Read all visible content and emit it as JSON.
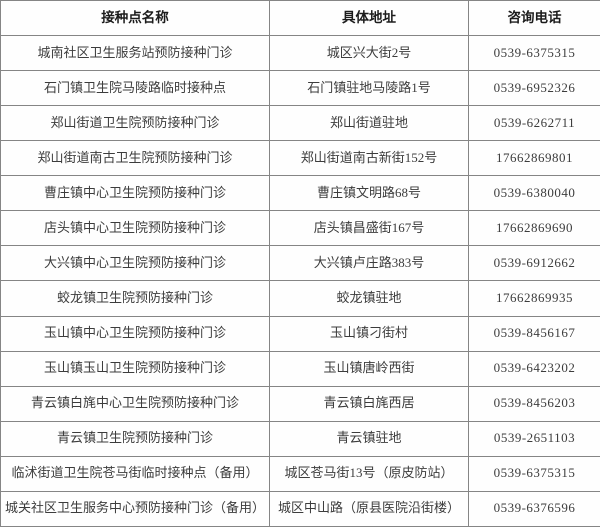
{
  "table": {
    "headers": [
      "接种点名称",
      "具体地址",
      "咨询电话"
    ],
    "rows": [
      {
        "name": "城南社区卫生服务站预防接种门诊",
        "address": "城区兴大街2号",
        "phone": "0539-6375315"
      },
      {
        "name": "石门镇卫生院马陵路临时接种点",
        "address": "石门镇驻地马陵路1号",
        "phone": "0539-6952326"
      },
      {
        "name": "郑山街道卫生院预防接种门诊",
        "address": "郑山街道驻地",
        "phone": "0539-6262711"
      },
      {
        "name": "郑山街道南古卫生院预防接种门诊",
        "address": "郑山街道南古新街152号",
        "phone": "17662869801"
      },
      {
        "name": "曹庄镇中心卫生院预防接种门诊",
        "address": "曹庄镇文明路68号",
        "phone": "0539-6380040"
      },
      {
        "name": "店头镇中心卫生院预防接种门诊",
        "address": "店头镇昌盛街167号",
        "phone": "17662869690"
      },
      {
        "name": "大兴镇中心卫生院预防接种门诊",
        "address": "大兴镇卢庄路383号",
        "phone": "0539-6912662"
      },
      {
        "name": "蛟龙镇卫生院预防接种门诊",
        "address": "蛟龙镇驻地",
        "phone": "17662869935"
      },
      {
        "name": "玉山镇中心卫生院预防接种门诊",
        "address": "玉山镇刁街村",
        "phone": "0539-8456167"
      },
      {
        "name": "玉山镇玉山卫生院预防接种门诊",
        "address": "玉山镇唐岭西街",
        "phone": "0539-6423202"
      },
      {
        "name": "青云镇白旄中心卫生院预防接种门诊",
        "address": "青云镇白旄西居",
        "phone": "0539-8456203"
      },
      {
        "name": "青云镇卫生院预防接种门诊",
        "address": "青云镇驻地",
        "phone": "0539-2651103"
      },
      {
        "name": "临沭街道卫生院苍马街临时接种点（备用）",
        "address": "城区苍马街13号（原皮防站）",
        "phone": "0539-6375315"
      },
      {
        "name": "城关社区卫生服务中心预防接种门诊（备用）",
        "address": "城区中山路（原县医院沿街楼）",
        "phone": "0539-6376596"
      }
    ],
    "colors": {
      "border": "#858585",
      "text": "#3c3c3c",
      "header_text": "#1c1c1c",
      "background": "#fefefe"
    }
  }
}
